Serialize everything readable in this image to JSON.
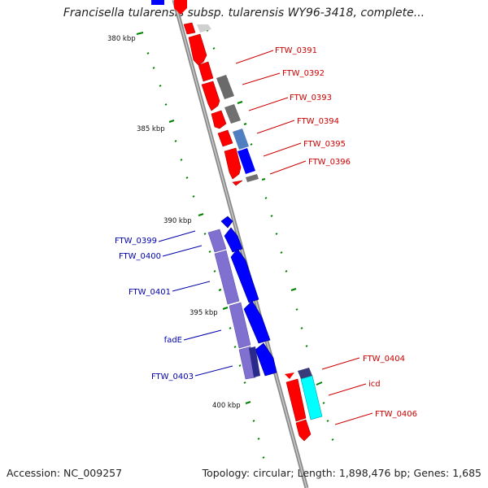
{
  "title": "Francisella tularensis subsp. tularensis WY96-3418, complete...",
  "footer": {
    "accession": "Accession: NC_009257",
    "summary": "Topology: circular; Length: 1,898,476 bp; Genes: 1,685"
  },
  "ticks": [
    "380 kbp",
    "385 kbp",
    "390 kbp",
    "395 kbp",
    "400 kbp"
  ],
  "right_labels": [
    "FTW_0391",
    "FTW_0392",
    "FTW_0393",
    "FTW_0394",
    "FTW_0395",
    "FTW_0396",
    "FTW_0404",
    "icd",
    "FTW_0406"
  ],
  "left_labels": [
    "FTW_0399",
    "FTW_0400",
    "FTW_0401",
    "fadE",
    "FTW_0403"
  ],
  "colors": {
    "forward_cds": "#ff0000",
    "reverse_cds": "#0000ff",
    "cog_gray": "#666666",
    "cog_purple": "#8070d0",
    "cog_cyan": "#00ffff",
    "backbone": "#888888",
    "gc_ticks": "#008000",
    "right_label_color": "#cc0000",
    "left_label_color": "#0000aa"
  }
}
